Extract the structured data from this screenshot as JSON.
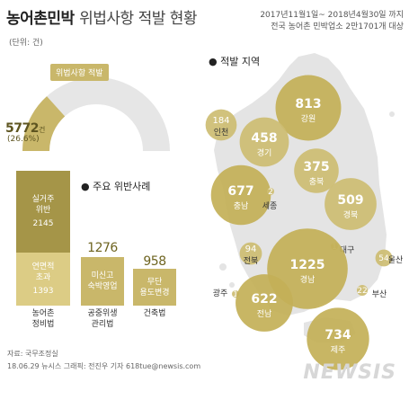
{
  "header": {
    "title_bold": "농어촌민박",
    "title_light": "위법사항 적발 현황",
    "period_line1": "2017년11월1일~ 2018년4월30일 까지",
    "period_line2": "전국 농어촌 민박업소 2만1701개 대상",
    "unit": "(단위: 건)"
  },
  "gauge": {
    "label": "위법사항 적발",
    "value": "5772",
    "value_unit": "건",
    "percent": "(26.6%)",
    "fraction": 0.266
  },
  "bars_section": {
    "title": "주요 위반사례",
    "bars": [
      {
        "total": "3538",
        "caption_line1": "농어촌",
        "caption_line2": "정비법",
        "segments": [
          {
            "line1": "실거주",
            "line2": "위반",
            "value": "2145",
            "num": 2145
          },
          {
            "line1": "연면적",
            "line2": "초과",
            "value": "1393",
            "num": 1393
          }
        ]
      },
      {
        "total": "1276",
        "caption_line1": "공중위생",
        "caption_line2": "관리법",
        "segments": [
          {
            "line1": "미신고",
            "line2": "숙박영업",
            "value": "",
            "num": 1276
          }
        ]
      },
      {
        "total": "958",
        "caption_line1": "건축법",
        "caption_line2": "",
        "segments": [
          {
            "line1": "무단",
            "line2": "용도변경",
            "value": "",
            "num": 958
          }
        ]
      }
    ]
  },
  "map_section": {
    "title": "적발 지역"
  },
  "chart_data": {
    "type": "bubble-map",
    "regions": [
      {
        "name": "강원",
        "value": 813
      },
      {
        "name": "인천",
        "value": 184
      },
      {
        "name": "경기",
        "value": 458
      },
      {
        "name": "충북",
        "value": 375
      },
      {
        "name": "충남",
        "value": 677
      },
      {
        "name": "세종",
        "value": 2
      },
      {
        "name": "경북",
        "value": 509
      },
      {
        "name": "대구",
        "value": 1
      },
      {
        "name": "전북",
        "value": 94
      },
      {
        "name": "울산",
        "value": 54
      },
      {
        "name": "경남",
        "value": 1225
      },
      {
        "name": "부산",
        "value": 22
      },
      {
        "name": "광주",
        "value": 1
      },
      {
        "name": "전남",
        "value": 622
      },
      {
        "name": "제주",
        "value": 734
      }
    ]
  },
  "colors": {
    "accent": "#c9b76a",
    "accent_dark": "#a59548",
    "accent_light": "#dccc85",
    "map": "#e4e4e4"
  },
  "footer": {
    "source": "자료: 국무조정실",
    "credit": "18.06.29 뉴시스 그래픽: 전진우 기자 618tue@newsis.com",
    "logo": "NEWSIS"
  }
}
